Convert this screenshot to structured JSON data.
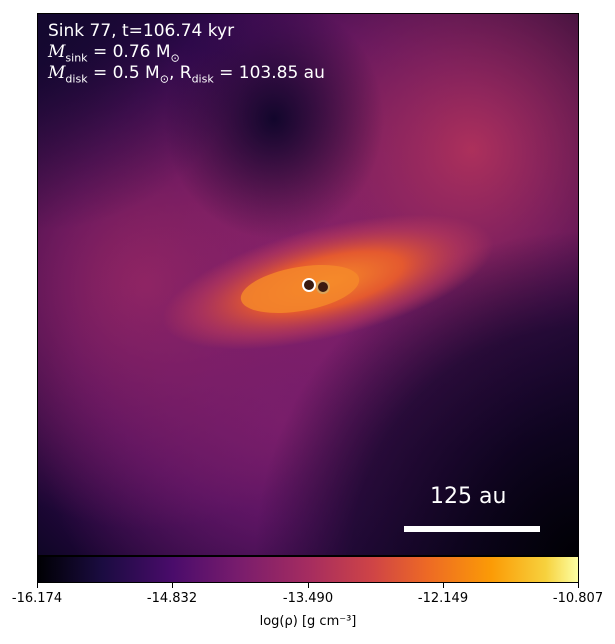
{
  "annotation": {
    "line1": "Sink 77, t=106.74 kyr",
    "line2_symbol": "M",
    "line2_sub": "sink",
    "line2_value": " = 0.76 M",
    "line2_unit_sub": "⊙",
    "line3_symbol": "M",
    "line3_sub": "disk",
    "line3_value": " = 0.5 M",
    "line3_unit_sub": "⊙",
    "line3_r_symbol": ", R",
    "line3_r_sub": "disk",
    "line3_r_value": " = 103.85 au"
  },
  "scale_bar": {
    "label": "125 au"
  },
  "colorbar": {
    "ticks": [
      "-16.174",
      "-14.832",
      "-13.490",
      "-12.149",
      "-10.807"
    ],
    "label": "log(ρ) [g cm⁻³]",
    "colormap": "inferno"
  },
  "sinks": [
    {
      "name": "primary",
      "color": "#ffffff"
    },
    {
      "name": "secondary",
      "color": "#d9a35a"
    }
  ]
}
